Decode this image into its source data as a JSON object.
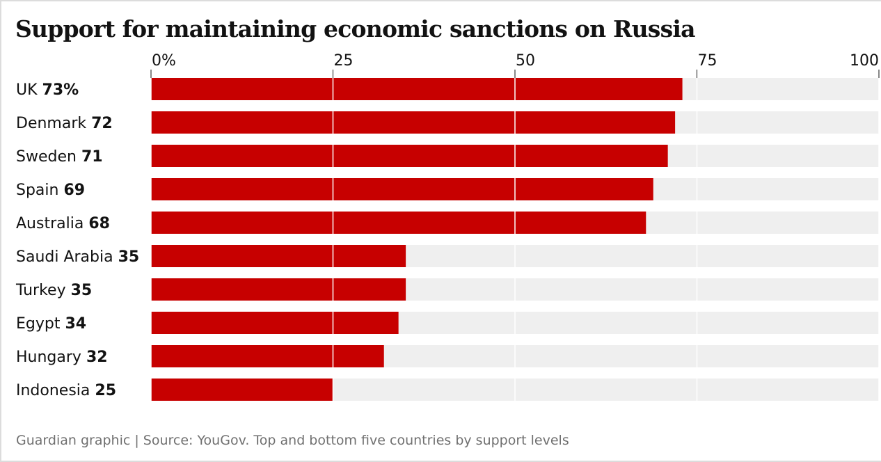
{
  "title": "Support for maintaining economic sanctions on Russia",
  "source": "Guardian graphic | Source: YouGov. Top and bottom five countries by support levels",
  "colors": {
    "bar": "#c70000",
    "track": "#efefef",
    "grid": "#ffffff",
    "tick": "#121212"
  },
  "chart_data": {
    "type": "bar",
    "orientation": "horizontal",
    "title": "Support for maintaining economic sanctions on Russia",
    "xlabel": "",
    "ylabel": "",
    "xlim": [
      0,
      100
    ],
    "ticks": [
      0,
      25,
      50,
      75,
      100
    ],
    "tick_labels": [
      "0%",
      "25",
      "50",
      "75",
      "100"
    ],
    "categories": [
      "UK",
      "Denmark",
      "Sweden",
      "Spain",
      "Australia",
      "Saudi Arabia",
      "Turkey",
      "Egypt",
      "Hungary",
      "Indonesia"
    ],
    "values": [
      73,
      72,
      71,
      69,
      68,
      35,
      35,
      34,
      32,
      25
    ],
    "value_labels": [
      "73%",
      "72",
      "71",
      "69",
      "68",
      "35",
      "35",
      "34",
      "32",
      "25"
    ]
  }
}
